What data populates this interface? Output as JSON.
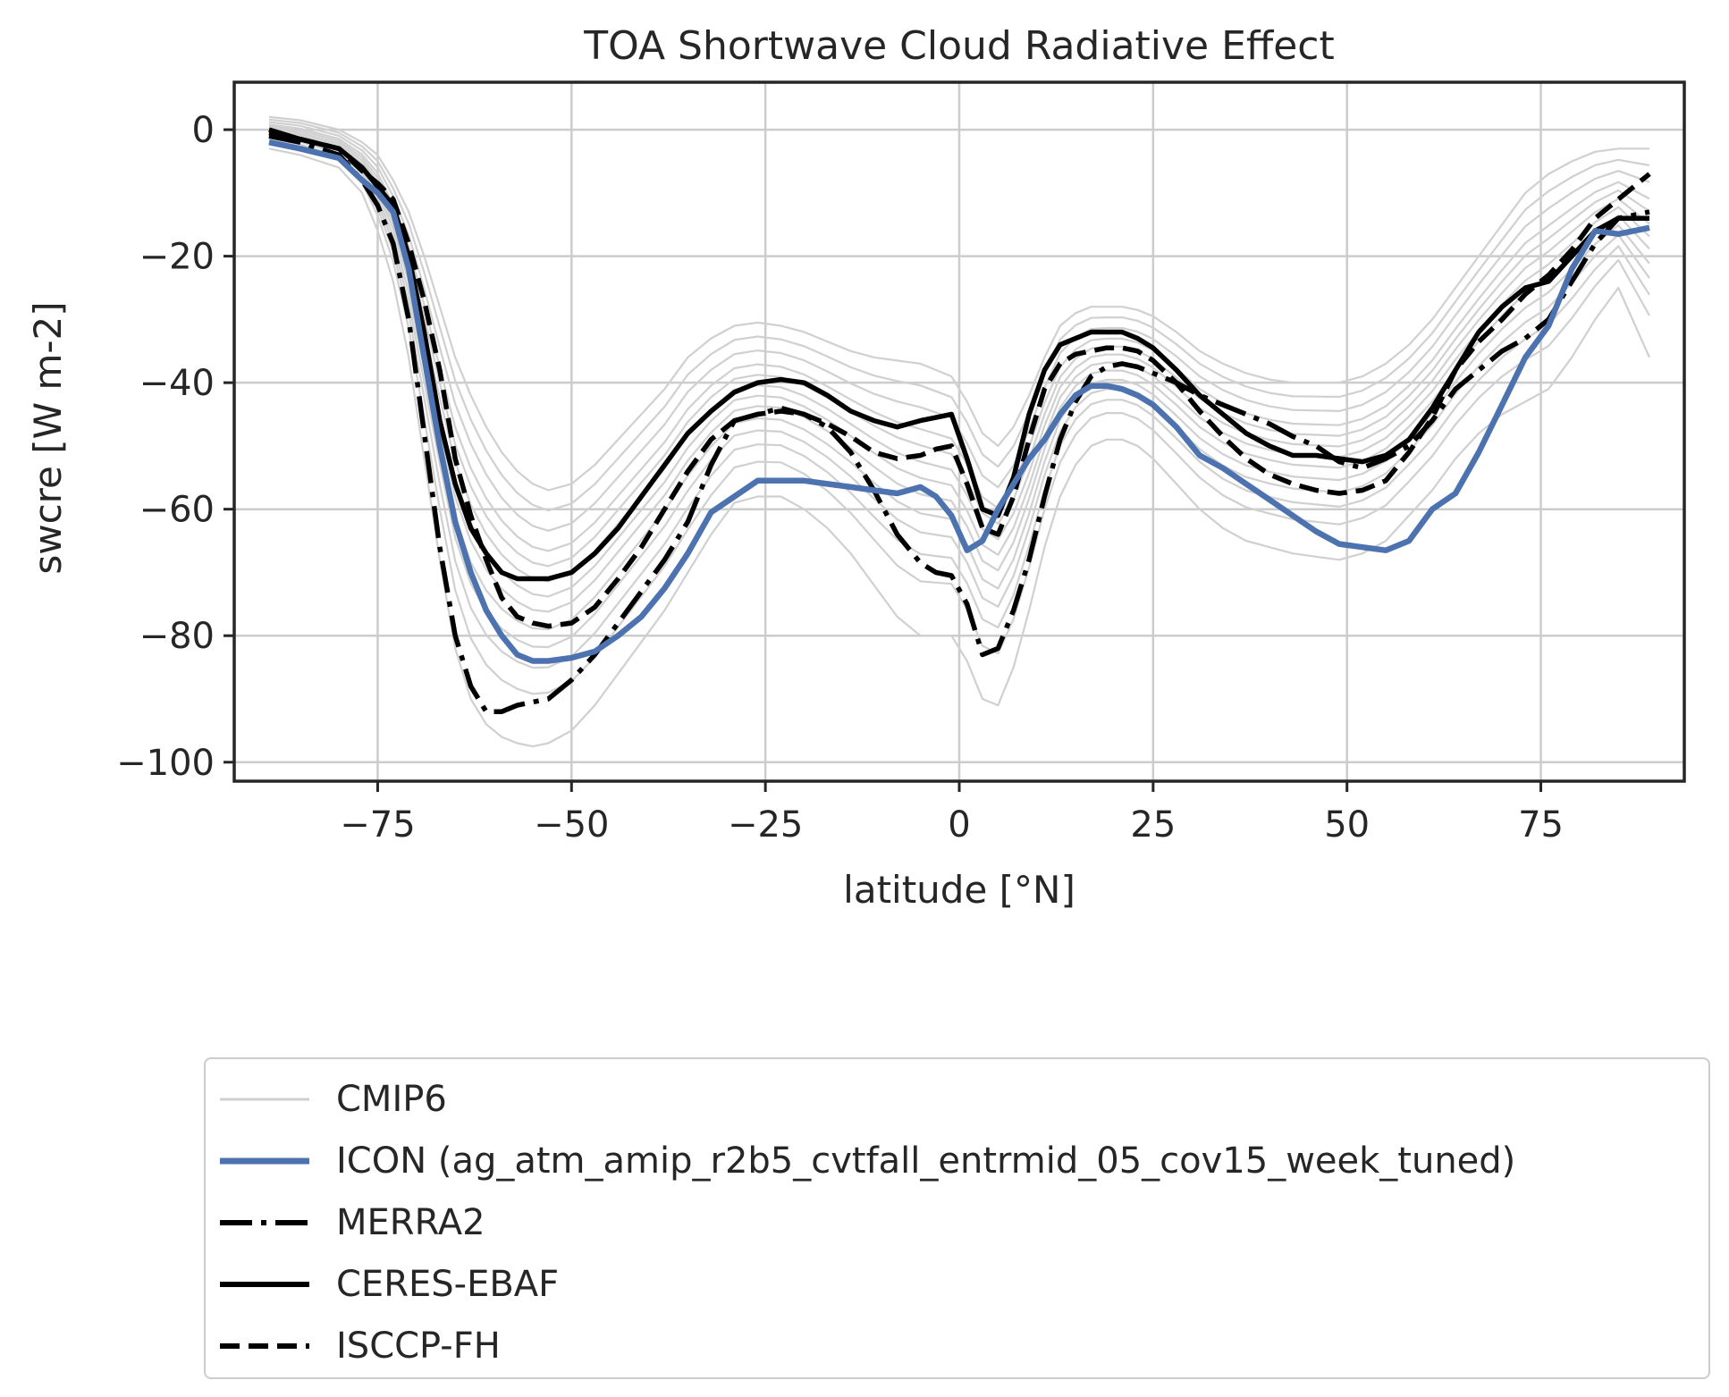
{
  "chart_data": {
    "type": "line",
    "title": "TOA Shortwave Cloud Radiative Effect",
    "xlabel": "latitude [°N]",
    "ylabel": "swcre [W m-2]",
    "xlim": [
      -93.5,
      93.5
    ],
    "ylim": [
      -103,
      7.5
    ],
    "xticks": [
      -75,
      -50,
      -25,
      0,
      25,
      50,
      75
    ],
    "xtick_labels": [
      "−75",
      "−50",
      "−25",
      "0",
      "25",
      "50",
      "75"
    ],
    "yticks": [
      0,
      -20,
      -40,
      -60,
      -80,
      -100
    ],
    "ytick_labels": [
      "0",
      "−20",
      "−40",
      "−60",
      "−80",
      "−100"
    ],
    "grid": true,
    "legend_position": "below-plot",
    "x": [
      -89,
      -85,
      -80,
      -77,
      -75,
      -73,
      -71,
      -69,
      -67,
      -65,
      -63,
      -61,
      -59,
      -57,
      -55,
      -53,
      -50,
      -47,
      -44,
      -41,
      -38,
      -35,
      -32,
      -29,
      -26,
      -23,
      -20,
      -17,
      -14,
      -11,
      -8,
      -5,
      -3,
      -1,
      1,
      3,
      5,
      7,
      9,
      11,
      13,
      15,
      17,
      19,
      21,
      23,
      25,
      28,
      31,
      34,
      37,
      40,
      43,
      46,
      49,
      52,
      55,
      58,
      61,
      64,
      67,
      70,
      73,
      76,
      79,
      82,
      85,
      89
    ],
    "series": [
      {
        "name": "ICON (ag_atm_amip_r2b5_cvtfall_entrmid_05_cov15_week_tuned)",
        "color": "#4c72b0",
        "style": "solid",
        "values": [
          -2,
          -3,
          -4.5,
          -8,
          -10,
          -13,
          -22,
          -36,
          -50,
          -62,
          -70,
          -76,
          -80,
          -83,
          -84,
          -84,
          -83.5,
          -82.5,
          -80,
          -77,
          -72.5,
          -67,
          -60.5,
          -58,
          -55.5,
          -55.5,
          -55.5,
          -56,
          -56.5,
          -57,
          -57.5,
          -56.5,
          -58,
          -61,
          -66.5,
          -65,
          -60,
          -56,
          -52,
          -49,
          -45,
          -42,
          -40.5,
          -40.5,
          -41,
          -42,
          -43.5,
          -47,
          -51.5,
          -53.5,
          -56,
          -58.5,
          -61,
          -63.5,
          -65.5,
          -66,
          -66.5,
          -65,
          -60,
          -57.5,
          -51,
          -43.5,
          -36,
          -31,
          -22,
          -16,
          -16.5,
          -15.5
        ]
      },
      {
        "name": "MERRA2",
        "color": "#000000",
        "style": "dashdot",
        "values": [
          -1,
          -2,
          -4,
          -8,
          -12,
          -18,
          -30,
          -48,
          -66,
          -80,
          -88,
          -92,
          -92,
          -91,
          -90.5,
          -90,
          -87,
          -83,
          -78,
          -73,
          -68,
          -62,
          -53,
          -46,
          -45,
          -44,
          -45,
          -47,
          -51,
          -57,
          -64,
          -68.5,
          -70,
          -70.5,
          -75,
          -83,
          -82,
          -76,
          -68,
          -58,
          -49,
          -43,
          -39,
          -37.5,
          -37,
          -37.5,
          -38.5,
          -40,
          -42,
          -43.5,
          -45,
          -46.5,
          -48.5,
          -50,
          -52.5,
          -53.5,
          -52,
          -50,
          -46,
          -41,
          -38,
          -35,
          -33,
          -30,
          -24,
          -18,
          -14,
          -13
        ]
      },
      {
        "name": "CERES-EBAF",
        "color": "#000000",
        "style": "solid",
        "values": [
          0,
          -1.5,
          -3,
          -6,
          -9,
          -12,
          -20,
          -32,
          -46,
          -56,
          -63,
          -67,
          -70,
          -71,
          -71,
          -71,
          -70,
          -67,
          -63,
          -58,
          -53,
          -48,
          -44.5,
          -41.5,
          -40,
          -39.5,
          -40,
          -42,
          -44.5,
          -46,
          -47,
          -46,
          -45.5,
          -45,
          -52,
          -60,
          -61,
          -55,
          -45,
          -38,
          -34,
          -33,
          -32,
          -32,
          -32,
          -33,
          -34.5,
          -38,
          -42,
          -45,
          -48,
          -50,
          -51.5,
          -51.5,
          -52,
          -52.5,
          -51.5,
          -49,
          -44,
          -38,
          -32,
          -28,
          -25,
          -24,
          -20,
          -16,
          -14,
          -14
        ]
      },
      {
        "name": "ISCCP-FH",
        "color": "#000000",
        "style": "dashed",
        "values": [
          -0.5,
          -1.5,
          -3,
          -6.5,
          -8.5,
          -11,
          -18,
          -27,
          -38,
          -52,
          -61,
          -68,
          -74,
          -77,
          -78,
          -78.5,
          -78,
          -75.5,
          -71,
          -66,
          -60,
          -54,
          -49,
          -46,
          -45,
          -44.5,
          -45,
          -46.5,
          -48.5,
          -51,
          -52,
          -51.5,
          -50.5,
          -50,
          -56,
          -63,
          -64,
          -58,
          -49,
          -41,
          -37,
          -35.5,
          -35,
          -34.5,
          -34.5,
          -35,
          -36.5,
          -40,
          -44.5,
          -48.5,
          -52,
          -54.5,
          -56,
          -57,
          -57.5,
          -57,
          -55.5,
          -51,
          -45.5,
          -38,
          -33.5,
          -30,
          -26,
          -23,
          -19,
          -14,
          -11,
          -7
        ]
      }
    ],
    "cmip6": {
      "name": "CMIP6",
      "color": "#d0d0d0",
      "note": "ensemble of thin light-grey model lines",
      "envelope_upper": [
        2,
        1.5,
        0,
        -2,
        -4,
        -8,
        -13,
        -20,
        -28,
        -36,
        -42,
        -47,
        -51,
        -54,
        -56,
        -57,
        -56,
        -53,
        -49,
        -45,
        -41,
        -36,
        -33,
        -31,
        -30.5,
        -31,
        -32,
        -33.5,
        -35,
        -36,
        -36.5,
        -37,
        -38,
        -39,
        -43,
        -48,
        -50,
        -47,
        -42,
        -36,
        -31,
        -29,
        -28,
        -28,
        -28,
        -28.5,
        -29.5,
        -32,
        -35,
        -37,
        -38.5,
        -39.5,
        -40,
        -40,
        -40,
        -39,
        -37,
        -34,
        -30,
        -25,
        -20,
        -15,
        -10,
        -7,
        -5,
        -3.5,
        -3,
        -3
      ],
      "envelope_lower": [
        -3,
        -4,
        -6,
        -10,
        -16,
        -24,
        -36,
        -52,
        -68,
        -82,
        -90,
        -94,
        -96,
        -97,
        -97.5,
        -97,
        -95,
        -91,
        -86,
        -81,
        -76,
        -70,
        -64,
        -59,
        -58,
        -58,
        -60,
        -63,
        -67,
        -72,
        -77,
        -80,
        -80,
        -80,
        -84,
        -90,
        -91,
        -85,
        -76,
        -66,
        -58,
        -53,
        -50,
        -49,
        -49,
        -50,
        -52,
        -56,
        -60,
        -63,
        -65,
        -66,
        -67,
        -67.5,
        -68,
        -67,
        -65,
        -61,
        -57,
        -52,
        -48,
        -45,
        -43,
        -41,
        -36,
        -30,
        -25,
        -36
      ]
    }
  }
}
